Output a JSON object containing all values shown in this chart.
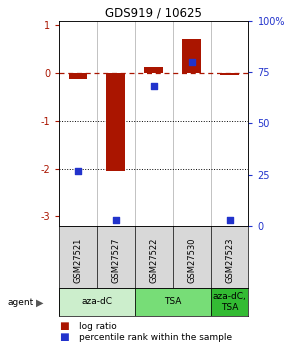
{
  "title": "GDS919 / 10625",
  "samples": [
    "GSM27521",
    "GSM27527",
    "GSM27522",
    "GSM27530",
    "GSM27523"
  ],
  "log_ratios": [
    -0.12,
    -2.05,
    0.12,
    0.72,
    -0.04
  ],
  "percentile_ranks": [
    27,
    3,
    68,
    80,
    3
  ],
  "ylim_left": [
    -3.2,
    1.1
  ],
  "bar_color": "#aa1500",
  "dot_color": "#2233cc",
  "agent_groups": [
    {
      "label": "aza-dC",
      "start": 0,
      "end": 2,
      "color": "#cceecc"
    },
    {
      "label": "TSA",
      "start": 2,
      "end": 4,
      "color": "#77dd77"
    },
    {
      "label": "aza-dC,\nTSA",
      "start": 4,
      "end": 5,
      "color": "#33bb33"
    }
  ],
  "left_yticks": [
    1,
    0,
    -1,
    -2,
    -3
  ],
  "left_ytick_labels": [
    "1",
    "0",
    "-1",
    "-2",
    "-3"
  ],
  "right_tick_pcts": [
    100,
    75,
    50,
    25,
    0
  ],
  "right_tick_labels": [
    "100%",
    "75",
    "50",
    "25",
    "0"
  ],
  "legend_log_ratio": "log ratio",
  "legend_percentile": "percentile rank within the sample",
  "agent_label": "agent",
  "bg_color": "#ffffff",
  "sample_bg": "#d8d8d8",
  "bar_width": 0.5
}
